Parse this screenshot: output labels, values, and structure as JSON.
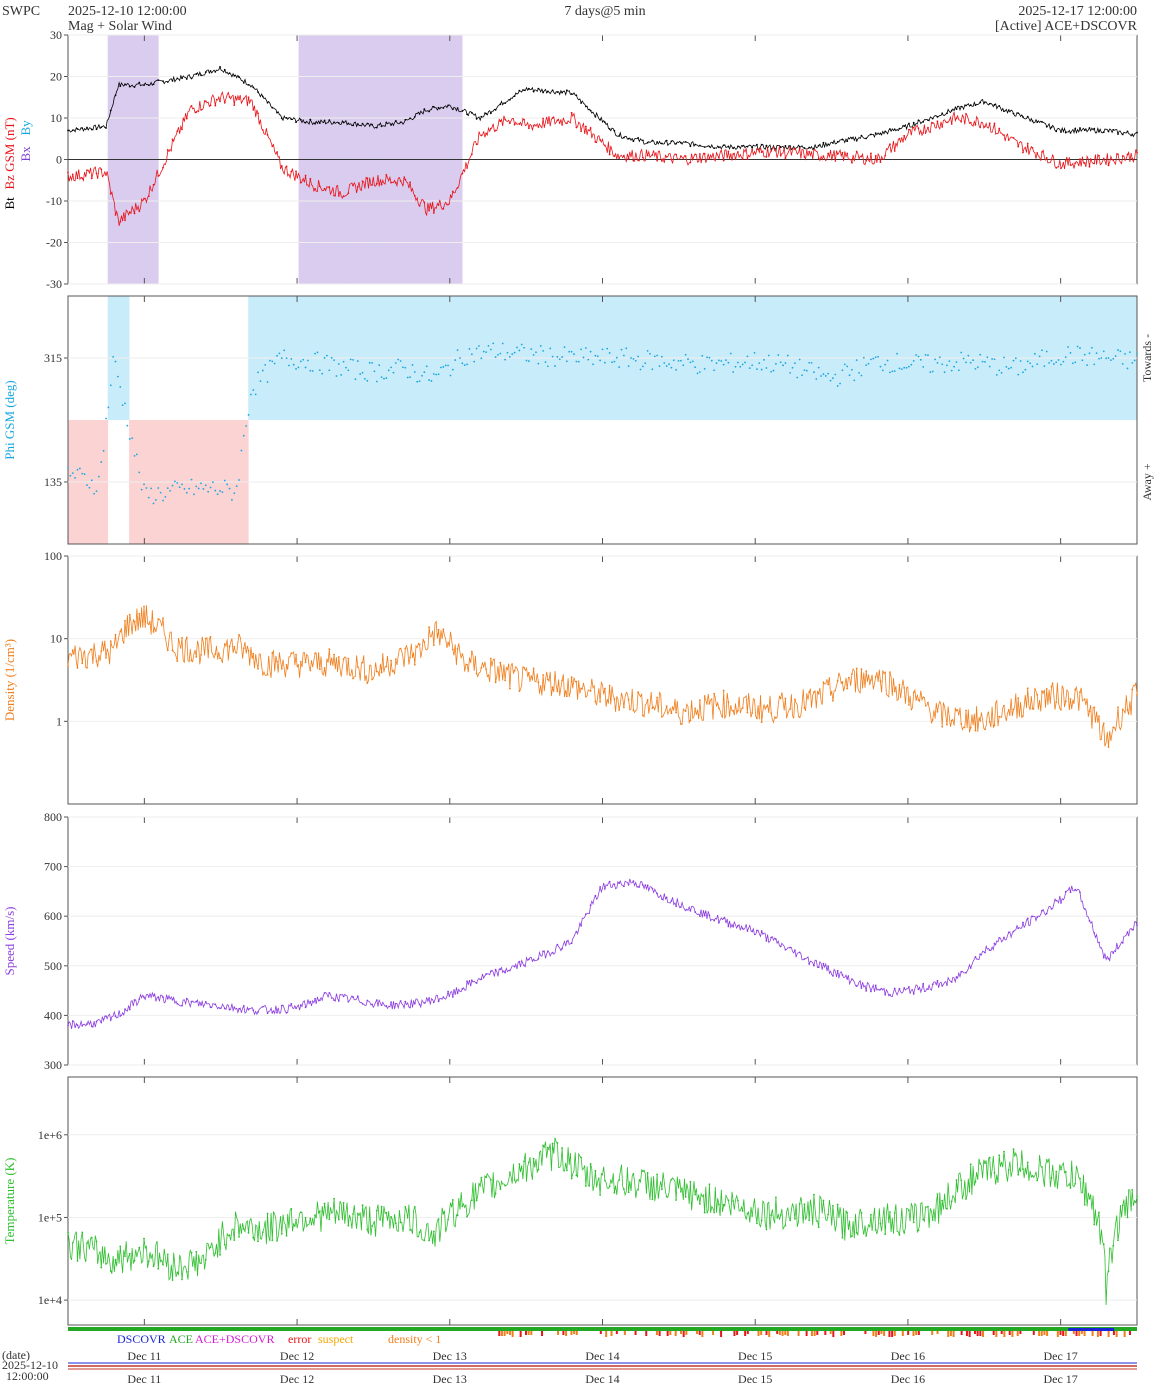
{
  "header": {
    "brand": "SWPC",
    "start": "2025-12-10 12:00:00",
    "subtitle": "Mag + Solar Wind",
    "span": "7 days@5 min",
    "end": "2025-12-17 12:00:00",
    "source": "[Active] ACE+DSCOVR"
  },
  "colors": {
    "bt": "#000000",
    "bz": "#e8151a",
    "bx": "#7b3fd6",
    "by": "#1aa7e0",
    "phi": "#1aa7e0",
    "phi_towards": "#c9ecfa",
    "phi_away": "#fbd3d3",
    "bz_south_fill": "#d9ccef",
    "density": "#f07f1d",
    "speed": "#8d3fe0",
    "temperature": "#2fbf2f",
    "dscovr": "#1a24d6",
    "ace": "#22a822",
    "ace_dscovr": "#d61ad6",
    "error": "#e8151a",
    "suspect": "#f2a800",
    "density_lt_1": "#f07f1d"
  },
  "chart_data": [
    {
      "type": "line",
      "name": "mag",
      "ylabel_parts": [
        "Bt",
        "Bz GSM (nT)",
        "Bx",
        "By"
      ],
      "ylim": [
        -30,
        30
      ],
      "yticks": [
        "30",
        "20",
        "10",
        "0",
        "-10",
        "-20",
        "-30"
      ],
      "x_days": [
        0,
        0.25,
        0.33,
        0.5,
        0.8,
        1.0,
        1.2,
        1.4,
        1.6,
        1.8,
        2.0,
        2.2,
        2.35,
        2.5,
        2.7,
        2.9,
        3.0,
        3.3,
        3.6,
        3.8,
        4.0,
        4.3,
        4.6,
        4.9,
        5.0,
        5.3,
        5.5,
        5.8,
        6.0,
        6.2,
        6.5,
        6.8,
        7.0
      ],
      "bt": [
        7,
        8,
        18,
        18,
        20,
        22,
        18,
        10,
        9,
        9,
        8,
        9,
        12,
        13,
        10,
        15,
        17,
        16,
        6,
        4,
        4,
        3,
        3,
        3,
        4,
        6,
        8,
        12,
        14,
        11,
        7,
        7,
        6
      ],
      "bz": [
        -4,
        -3,
        -15,
        -10,
        12,
        15,
        14,
        -2,
        -6,
        -8,
        -5,
        -5,
        -12,
        -10,
        6,
        10,
        8,
        10,
        1,
        1,
        0,
        1,
        2,
        1,
        1,
        0,
        6,
        10,
        9,
        4,
        -1,
        0,
        1
      ]
    },
    {
      "type": "scatter",
      "name": "phi",
      "ylabel": "Phi GSM (deg)",
      "right_labels": [
        "Towards -",
        "Away +"
      ],
      "yticks": [
        "315",
        "135"
      ],
      "ylim": [
        45,
        405
      ],
      "x_days": [
        0,
        0.2,
        0.3,
        0.5,
        0.8,
        1.0,
        1.1,
        1.2,
        1.4,
        1.6,
        1.8,
        2.0,
        2.2,
        2.4,
        2.6,
        2.8,
        3.0,
        3.3,
        3.6,
        3.9,
        4.2,
        4.5,
        4.7,
        5.0,
        5.3,
        5.6,
        5.9,
        6.2,
        6.5,
        6.8,
        7.0
      ],
      "phi": [
        150,
        130,
        315,
        115,
        125,
        125,
        120,
        270,
        315,
        310,
        300,
        295,
        300,
        285,
        320,
        325,
        320,
        315,
        315,
        310,
        305,
        310,
        305,
        285,
        310,
        305,
        310,
        300,
        320,
        315,
        310
      ]
    },
    {
      "type": "line",
      "name": "density",
      "ylabel": "Density (1/cm³)",
      "yscale": "log",
      "ylim": [
        0.1,
        100
      ],
      "yticks": [
        "100",
        "10",
        "1"
      ],
      "x_days": [
        0,
        0.3,
        0.4,
        0.5,
        0.7,
        0.9,
        1.1,
        1.3,
        1.5,
        1.8,
        2.0,
        2.3,
        2.4,
        2.6,
        2.8,
        3.0,
        3.2,
        3.5,
        3.7,
        4.0,
        4.3,
        4.6,
        4.9,
        5.1,
        5.3,
        5.5,
        5.7,
        6.0,
        6.2,
        6.4,
        6.6,
        6.8,
        7.0
      ],
      "density": [
        6,
        7,
        15,
        18,
        8,
        7,
        8,
        5,
        5,
        5,
        4,
        7,
        12,
        5,
        4,
        3,
        3,
        2,
        1.8,
        1.3,
        1.6,
        1.4,
        1.8,
        3,
        3.5,
        2,
        1.2,
        1,
        1.5,
        2,
        2,
        0.5,
        2
      ]
    },
    {
      "type": "line",
      "name": "speed",
      "ylabel": "Speed (km/s)",
      "ylim": [
        300,
        800
      ],
      "yticks": [
        "800",
        "700",
        "600",
        "500",
        "400",
        "300"
      ],
      "x_days": [
        0,
        0.2,
        0.35,
        0.5,
        0.8,
        1.0,
        1.2,
        1.5,
        1.7,
        1.9,
        2.1,
        2.3,
        2.5,
        2.7,
        2.9,
        3.1,
        3.3,
        3.5,
        3.7,
        3.9,
        4.2,
        4.5,
        4.8,
        5.0,
        5.2,
        5.4,
        5.6,
        5.8,
        6.0,
        6.2,
        6.4,
        6.6,
        6.8,
        7.0
      ],
      "speed": [
        380,
        385,
        405,
        440,
        425,
        420,
        410,
        415,
        440,
        430,
        420,
        425,
        440,
        475,
        495,
        520,
        550,
        660,
        670,
        640,
        600,
        570,
        520,
        490,
        460,
        445,
        455,
        470,
        530,
        570,
        610,
        660,
        510,
        590
      ]
    },
    {
      "type": "line",
      "name": "temperature",
      "ylabel": "Temperature (K)",
      "yscale": "log",
      "ylim": [
        5000,
        5000000
      ],
      "yticks": [
        "1e+6",
        "1e+5",
        "1e+4"
      ],
      "x_days": [
        0,
        0.3,
        0.5,
        0.7,
        0.9,
        1.1,
        1.3,
        1.5,
        1.8,
        2.0,
        2.2,
        2.4,
        2.6,
        2.8,
        3.0,
        3.2,
        3.4,
        3.6,
        3.8,
        4.0,
        4.3,
        4.6,
        4.9,
        5.1,
        5.3,
        5.5,
        5.7,
        6.0,
        6.2,
        6.4,
        6.6,
        6.8,
        7.0
      ],
      "temperature": [
        50000,
        30000,
        40000,
        25000,
        30000,
        80000,
        70000,
        100000,
        110000,
        90000,
        100000,
        60000,
        150000,
        250000,
        400000,
        600000,
        300000,
        280000,
        250000,
        200000,
        150000,
        110000,
        120000,
        80000,
        100000,
        90000,
        130000,
        350000,
        450000,
        350000,
        300000,
        9000,
        200000
      ]
    },
    {
      "type": "bar",
      "name": "flags",
      "legend": [
        "DSCOVR",
        "ACE",
        "ACE+DSCOVR",
        "error",
        "suspect",
        "density < 1"
      ]
    }
  ],
  "xaxis": {
    "label": "(date)",
    "start_date": "2025-12-10",
    "start_time": "12:00:00",
    "ticks": [
      "Dec 11",
      "Dec 12",
      "Dec 13",
      "Dec 14",
      "Dec 15",
      "Dec 16",
      "Dec 17"
    ]
  }
}
